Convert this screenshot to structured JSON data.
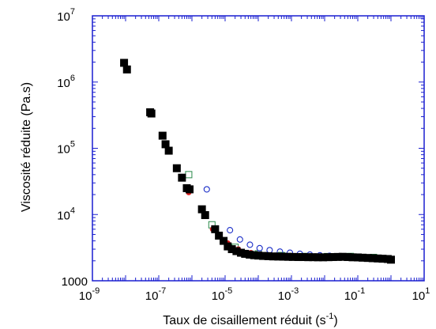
{
  "chart_data": {
    "type": "scatter",
    "xlabel": "Taux de cisaillement réduit (s",
    "xlabel_sup": "-1",
    "xlabel_end": ")",
    "ylabel": "Viscosité réduite (Pa.s)",
    "xscale": "log",
    "yscale": "log",
    "xlim": [
      1e-09,
      10
    ],
    "ylim": [
      1000,
      10000000
    ],
    "grid": false,
    "x_tick_labels": [
      {
        "value": 1e-09,
        "base": "10",
        "exp": "-9"
      },
      {
        "value": 1e-07,
        "base": "10",
        "exp": "-7"
      },
      {
        "value": 1e-05,
        "base": "10",
        "exp": "-5"
      },
      {
        "value": 0.001,
        "base": "10",
        "exp": "-3"
      },
      {
        "value": 0.1,
        "base": "10",
        "exp": "-1"
      },
      {
        "value": 10,
        "base": "10",
        "exp": "1"
      }
    ],
    "y_tick_labels": [
      {
        "value": 1000,
        "base": "1000",
        "exp": ""
      },
      {
        "value": 10000,
        "base": "10",
        "exp": "4"
      },
      {
        "value": 100000,
        "base": "10",
        "exp": "5"
      },
      {
        "value": 1000000,
        "base": "10",
        "exp": "6"
      },
      {
        "value": 10000000,
        "base": "10",
        "exp": "7"
      }
    ],
    "series": [
      {
        "marker": "square-filled",
        "color": "#000000",
        "x": [
          9e-09,
          1.1e-08,
          5.5e-08,
          6e-08,
          1.3e-07,
          1.6e-07,
          2e-07,
          3.5e-07,
          5e-07,
          7e-07,
          8.5e-07,
          2e-06,
          2.5e-06,
          5e-06,
          6.5e-06,
          9e-06,
          1.2e-05,
          1.6e-05,
          2.2e-05,
          3e-05,
          4e-05,
          5.5e-05,
          7.5e-05,
          0.0001,
          0.00014,
          0.0002,
          0.00028,
          0.0004,
          0.00056,
          0.0008,
          0.0011,
          0.0016,
          0.0022,
          0.0032,
          0.0045,
          0.0063,
          0.009,
          0.013,
          0.018,
          0.025,
          0.035,
          0.05,
          0.07,
          0.1,
          0.14,
          0.2,
          0.28,
          0.4,
          0.56,
          0.8,
          1.0
        ],
        "y": [
          1950000,
          1550000,
          350000,
          335000,
          155000,
          115000,
          92000,
          50000,
          36000,
          25000,
          24000,
          12000,
          9800,
          6000,
          4800,
          4000,
          3300,
          3000,
          2800,
          2650,
          2550,
          2480,
          2430,
          2400,
          2370,
          2350,
          2330,
          2320,
          2310,
          2300,
          2290,
          2280,
          2280,
          2270,
          2270,
          2260,
          2260,
          2270,
          2280,
          2290,
          2300,
          2280,
          2260,
          2250,
          2230,
          2210,
          2190,
          2170,
          2150,
          2130,
          2080
        ]
      },
      {
        "marker": "circle-filled",
        "color": "#e02020",
        "x": [
          8e-07,
          4.2e-06,
          1.2e-05,
          2.5e-05,
          6e-05,
          0.00012
        ],
        "y": [
          21500,
          6000,
          3700,
          3000,
          2650,
          2500
        ]
      },
      {
        "marker": "circle-open",
        "color": "#1c2fc8",
        "x": [
          2.8e-06,
          1.4e-05,
          2.8e-05,
          5.6e-05,
          0.00011,
          0.00022,
          0.00045,
          0.0009,
          0.0018,
          0.0036,
          0.0072,
          0.014,
          0.029,
          0.058,
          0.11,
          0.23,
          0.46,
          0.9
        ],
        "y": [
          24000,
          5800,
          4200,
          3500,
          3100,
          2900,
          2750,
          2650,
          2550,
          2480,
          2420,
          2380,
          2350,
          2320,
          2280,
          2230,
          2170,
          2100
        ]
      },
      {
        "marker": "square-open",
        "color": "#2a8a4a",
        "x": [
          8e-07,
          4e-06,
          2e-05,
          0.0001,
          0.0005,
          0.0025,
          0.012,
          0.06,
          0.3
        ],
        "y": [
          40000,
          7000,
          3200,
          2550,
          2400,
          2330,
          2320,
          2330,
          2250
        ]
      }
    ]
  }
}
